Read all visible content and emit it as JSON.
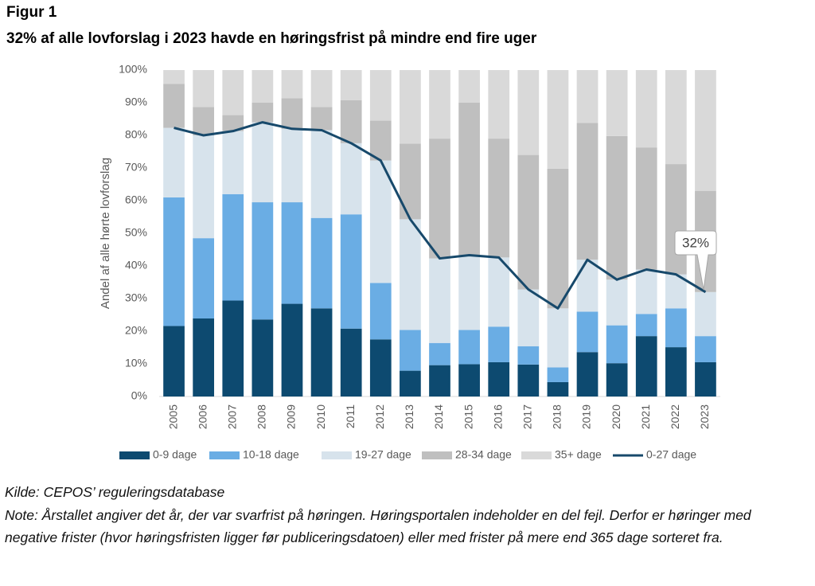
{
  "chart_data": {
    "type": "bar",
    "stacked": true,
    "title": "Figur 1",
    "subtitle": "32% af alle lovforslag i 2023 havde en høringsfrist på mindre end fire uger",
    "y_label": "Andel af alle hørte lovforslag",
    "categories": [
      "2005",
      "2006",
      "2007",
      "2008",
      "2009",
      "2010",
      "2011",
      "2012",
      "2013",
      "2014",
      "2015",
      "2016",
      "2017",
      "2018",
      "2019",
      "2020",
      "2021",
      "2022",
      "2023"
    ],
    "series": [
      {
        "name": "0-9 dage",
        "color": "#0d4a70",
        "values": [
          21.6,
          23.9,
          29.4,
          23.6,
          28.4,
          27,
          20.8,
          17.5,
          7.9,
          9.6,
          9.9,
          10.5,
          9.8,
          4.4,
          13.6,
          10.2,
          18.5,
          15.1,
          10.5
        ]
      },
      {
        "name": "10-18 dage",
        "color": "#6aade4",
        "values": [
          39.4,
          24.6,
          32.6,
          35.9,
          31.1,
          27.7,
          35,
          17.3,
          12.5,
          6.8,
          10.5,
          10.9,
          5.6,
          4.5,
          12.4,
          11.6,
          6.8,
          11.9,
          8
        ]
      },
      {
        "name": "19-27 dage",
        "color": "#d7e3ec",
        "values": [
          21.3,
          31.5,
          19.3,
          24.5,
          22.5,
          26.9,
          21.8,
          37.5,
          33.9,
          25.9,
          22.9,
          21.2,
          17.4,
          18.1,
          15.9,
          14,
          13.6,
          10.4,
          13.5
        ]
      },
      {
        "name": "28-34 dage",
        "color": "#bfbfbf",
        "values": [
          13.5,
          8.7,
          4.9,
          6,
          9.4,
          7.1,
          13.2,
          12.2,
          23.2,
          36.7,
          46.7,
          36.4,
          41.2,
          42.8,
          41.9,
          44,
          37.4,
          33.8,
          31
        ]
      },
      {
        "name": "35+ dage",
        "color": "#d9d9d9",
        "values": [
          4.2,
          11.3,
          13.8,
          10,
          8.6,
          11.3,
          9.2,
          15.5,
          22.5,
          21,
          10,
          21,
          26,
          30.2,
          16.2,
          20.2,
          23.7,
          28.8,
          37
        ]
      },
      {
        "name": "0-27 dage",
        "color": "#17496b",
        "type": "line",
        "values": [
          82.3,
          80,
          81.3,
          84,
          82,
          81.6,
          77.6,
          72.3,
          54.3,
          42.3,
          43.3,
          42.6,
          32.8,
          27,
          41.9,
          35.8,
          38.9,
          37.4,
          32
        ]
      }
    ],
    "annotation": "32%",
    "ylim": [
      0,
      100
    ],
    "yticks": [
      {
        "value": 0,
        "label": "0%"
      },
      {
        "value": 10,
        "label": "10%"
      },
      {
        "value": 20,
        "label": "20%"
      },
      {
        "value": 30,
        "label": "30%"
      },
      {
        "value": 40,
        "label": "40%"
      },
      {
        "value": 50,
        "label": "50%"
      },
      {
        "value": 60,
        "label": "60%"
      },
      {
        "value": 70,
        "label": "70%"
      },
      {
        "value": 80,
        "label": "80%"
      },
      {
        "value": 90,
        "label": "90%"
      },
      {
        "value": 100,
        "label": "100%"
      }
    ],
    "grid": false,
    "legend": "bottom",
    "source": "Kilde: CEPOS’ reguleringsdatabase",
    "note": "Note: Årstallet angiver det år, der var svarfrist på høringen. Høringsportalen indeholder en del fejl. Derfor er høringer med negative frister (hvor høringsfristen ligger før publiceringsdatoen) eller med frister på mere end 365 dage sorteret fra."
  }
}
